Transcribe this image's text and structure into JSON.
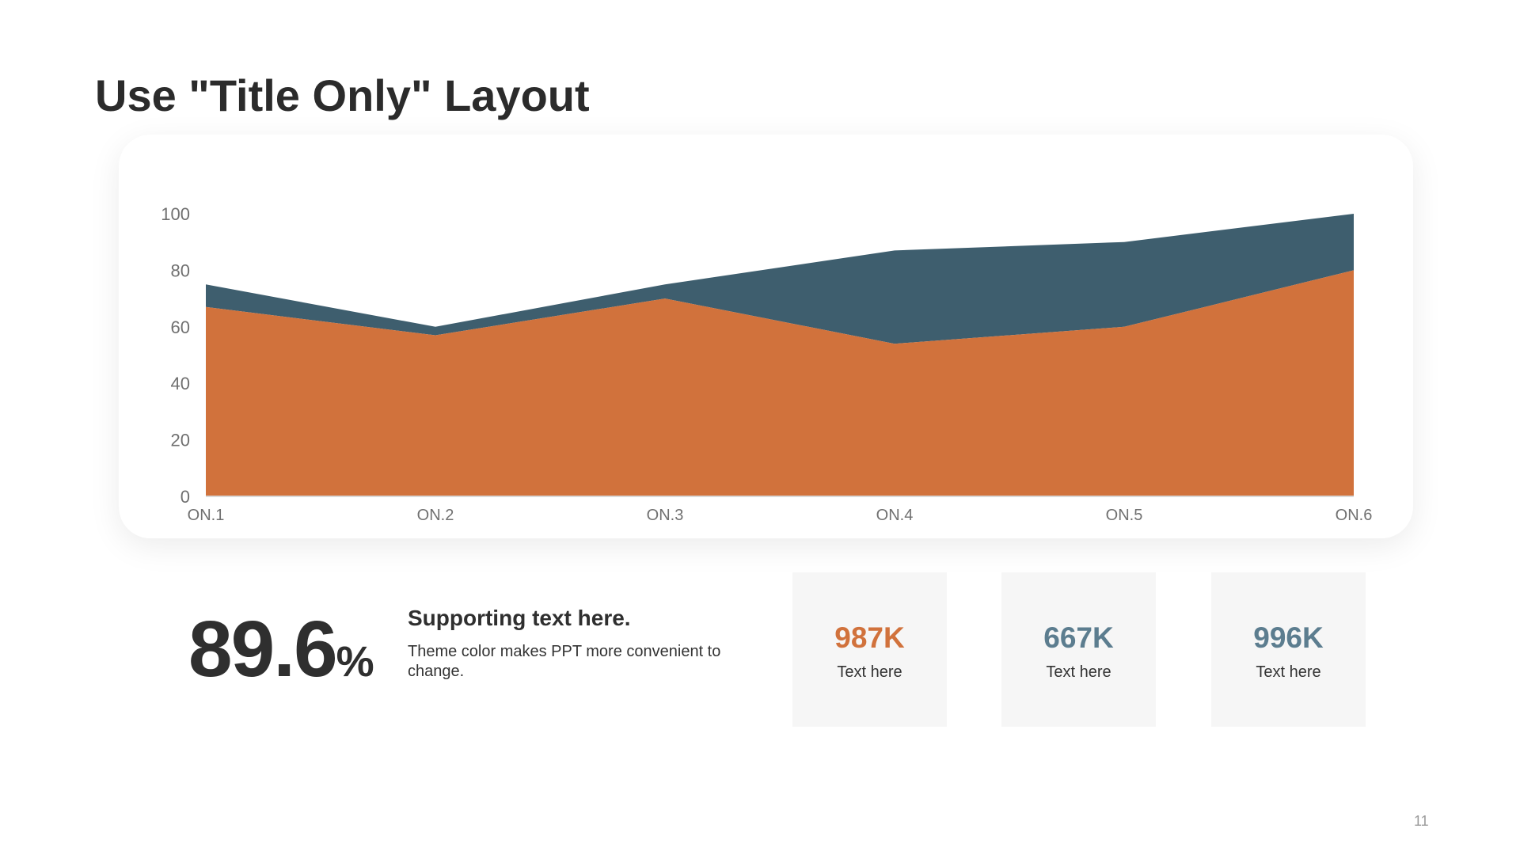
{
  "title": "Use \"Title Only\" Layout",
  "colors": {
    "series_a": "#D1723C",
    "series_b": "#3E5E6E",
    "kpi_blue": "#5C7D8F"
  },
  "chart_data": {
    "type": "area",
    "stacked": true,
    "categories": [
      "ON.1",
      "ON.2",
      "ON.3",
      "ON.4",
      "ON.5",
      "ON.6"
    ],
    "series": [
      {
        "values": [
          67,
          57,
          70,
          54,
          60,
          80
        ],
        "color": "#D1723C"
      },
      {
        "values": [
          8,
          3,
          5,
          33,
          30,
          20
        ],
        "color": "#3E5E6E"
      }
    ],
    "yticks": [
      0,
      20,
      40,
      60,
      80,
      100
    ],
    "ylim": [
      0,
      100
    ],
    "xlabel": "",
    "ylabel": "",
    "grid": false,
    "legend": "none"
  },
  "stat": {
    "value": "89.6",
    "unit": "%"
  },
  "support": {
    "title": "Supporting text here.",
    "body": "Theme color makes PPT more convenient to change."
  },
  "kpis": [
    {
      "value": "987K",
      "label": "Text here",
      "color": "#D1723C"
    },
    {
      "value": "667K",
      "label": "Text here",
      "color": "#5C7D8F"
    },
    {
      "value": "996K",
      "label": "Text here",
      "color": "#5C7D8F"
    }
  ],
  "page_number": "11"
}
